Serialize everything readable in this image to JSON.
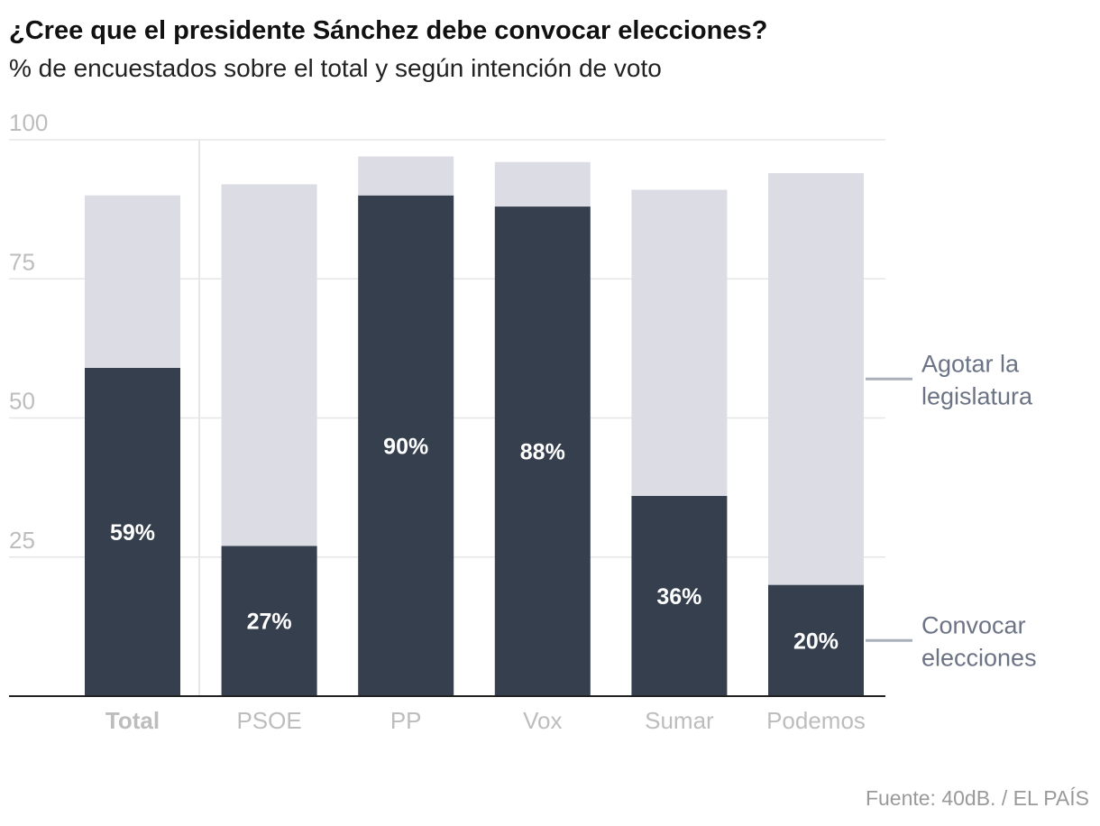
{
  "chart_data": {
    "type": "bar",
    "stacked": true,
    "title": "¿Cree que el presidente Sánchez debe convocar elecciones?",
    "subtitle": "% de encuestados sobre el total y según intención de voto",
    "categories": [
      "Total",
      "PSOE",
      "PP",
      "Vox",
      "Sumar",
      "Podemos"
    ],
    "series": [
      {
        "name": "Convocar elecciones",
        "values": [
          59,
          27,
          90,
          88,
          36,
          20
        ],
        "labels": [
          "59%",
          "27%",
          "90%",
          "88%",
          "36%",
          "20%"
        ],
        "color": "#353f4e"
      },
      {
        "name": "Agotar la legislatura",
        "values": [
          31,
          65,
          7,
          8,
          55,
          74
        ],
        "color": "#dcdde4"
      }
    ],
    "legend_lines": {
      "Convocar elecciones": [
        "Convocar",
        "elecciones"
      ],
      "Agotar la legislatura": [
        "Agotar la",
        "legislatura"
      ]
    },
    "yticks": [
      25,
      50,
      75,
      100
    ],
    "ylim": [
      0,
      100
    ],
    "grid": true,
    "legend": "right",
    "source": "Fuente: 40dB. / EL PAÍS"
  }
}
